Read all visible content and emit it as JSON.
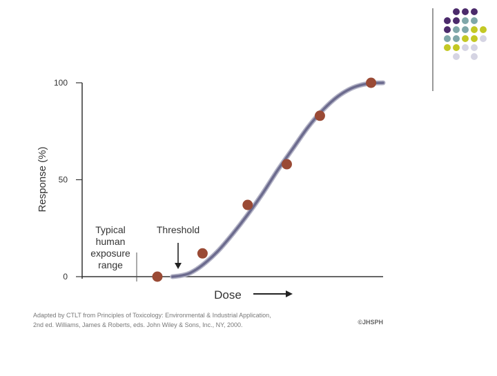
{
  "colors": {
    "purple": "#4b2a6b",
    "teal": "#7fa7a9",
    "olive": "#c3c824",
    "lavender": "#d5d4e3",
    "curve": "#6c6b8e",
    "curve_shadow": "#b3b3c6",
    "dot": "#9a4a35",
    "axis": "#333333",
    "text": "#333333",
    "caption": "#777777"
  },
  "decor": {
    "grid": [
      [
        null,
        "purple",
        "purple",
        "purple",
        null
      ],
      [
        "purple",
        "purple",
        "teal",
        "teal",
        null
      ],
      [
        "purple",
        "teal",
        "teal",
        "olive",
        "olive"
      ],
      [
        "teal",
        "teal",
        "olive",
        "olive",
        "lavender"
      ],
      [
        "olive",
        "olive",
        "lavender",
        "lavender",
        null
      ],
      [
        null,
        "lavender",
        null,
        "lavender",
        null
      ]
    ]
  },
  "chart_data": {
    "type": "line",
    "title": "",
    "xlabel": "Dose",
    "ylabel": "Response (%)",
    "yticks": [
      0,
      50,
      100
    ],
    "ylim": [
      0,
      100
    ],
    "xlim": [
      0,
      10
    ],
    "points": [
      {
        "x": 2.5,
        "y": 0
      },
      {
        "x": 4.0,
        "y": 12
      },
      {
        "x": 5.5,
        "y": 37
      },
      {
        "x": 6.8,
        "y": 58
      },
      {
        "x": 7.9,
        "y": 83
      },
      {
        "x": 9.6,
        "y": 100
      }
    ],
    "curve": [
      [
        3.0,
        0
      ],
      [
        3.3,
        0.6
      ],
      [
        3.6,
        2
      ],
      [
        4.0,
        6
      ],
      [
        4.5,
        13
      ],
      [
        5.0,
        22
      ],
      [
        5.5,
        32
      ],
      [
        6.0,
        43
      ],
      [
        6.5,
        55
      ],
      [
        7.0,
        66
      ],
      [
        7.5,
        77
      ],
      [
        8.0,
        86
      ],
      [
        8.5,
        93
      ],
      [
        9.0,
        97.5
      ],
      [
        9.5,
        99.6
      ],
      [
        10.0,
        100
      ]
    ],
    "annotations": {
      "exposure_lines": [
        "Typical",
        "human",
        "exposure",
        "range"
      ],
      "threshold": "Threshold",
      "threshold_x": 3.0
    },
    "caption_lines": [
      "Adapted by CTLT from Principles of Toxicology: Environmental & Industrial Application,",
      "2nd ed. Williams, James & Roberts, eds. John Wiley & Sons, Inc., NY, 2000."
    ],
    "logo": "©JHSPH"
  }
}
